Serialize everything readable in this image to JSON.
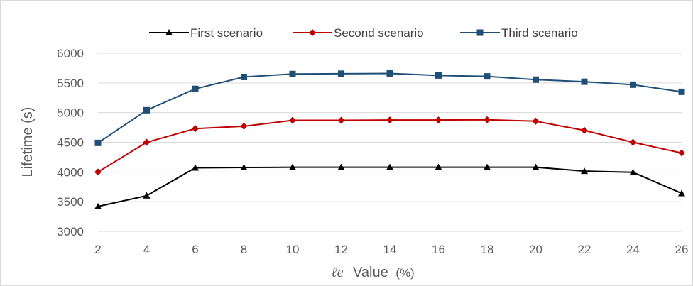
{
  "chart_data": {
    "type": "line",
    "title": "",
    "xlabel": "ℓe  Value (%)",
    "xlabel_parts": {
      "symbol": "ℓe",
      "text": "Value",
      "unit": "(%)"
    },
    "ylabel": "Lifetime (s)",
    "x": [
      2,
      4,
      6,
      8,
      10,
      12,
      14,
      16,
      18,
      20,
      22,
      24,
      26
    ],
    "ylim": [
      3000,
      6000
    ],
    "yticks": [
      3000,
      3500,
      4000,
      4500,
      5000,
      5500,
      6000
    ],
    "grid": "horizontal",
    "legend_position": "top",
    "series": [
      {
        "name": "First scenario",
        "color": "#000000",
        "marker": "triangle",
        "values": [
          3420,
          3600,
          4070,
          4075,
          4080,
          4080,
          4080,
          4080,
          4080,
          4080,
          4015,
          3995,
          3640
        ]
      },
      {
        "name": "Second scenario",
        "color": "#c00000",
        "marker": "diamond",
        "values": [
          4000,
          4500,
          4730,
          4770,
          4870,
          4870,
          4875,
          4875,
          4880,
          4855,
          4700,
          4500,
          4320
        ]
      },
      {
        "name": "Third scenario",
        "color": "#1f4e79",
        "marker": "square",
        "values": [
          4490,
          5040,
          5400,
          5600,
          5650,
          5655,
          5660,
          5625,
          5610,
          5555,
          5520,
          5470,
          5350
        ]
      }
    ]
  }
}
